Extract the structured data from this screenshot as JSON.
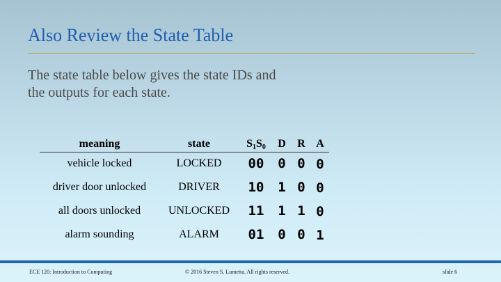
{
  "slide": {
    "title": "Also Review the State Table",
    "intro_line1": "The state table below gives the state IDs and",
    "intro_line2": "the outputs for each state."
  },
  "table": {
    "headers": {
      "meaning": "meaning",
      "state": "state",
      "s1s0_s": "S",
      "s1s0_sub1": "1",
      "s1s0_s2": "S",
      "s1s0_sub0": "0",
      "d": "D",
      "r": "R",
      "a": "A"
    },
    "rows": [
      {
        "meaning": "vehicle locked",
        "state": "LOCKED",
        "s1s0": "00",
        "d": "0",
        "r": "0",
        "a": "0"
      },
      {
        "meaning": "driver door unlocked",
        "state": "DRIVER",
        "s1s0": "10",
        "d": "1",
        "r": "0",
        "a": "0"
      },
      {
        "meaning": "all doors unlocked",
        "state": "UNLOCKED",
        "s1s0": "11",
        "d": "1",
        "r": "1",
        "a": "0"
      },
      {
        "meaning": "alarm sounding",
        "state": "ALARM",
        "s1s0": "01",
        "d": "0",
        "r": "0",
        "a": "1"
      }
    ]
  },
  "footer": {
    "course": "ECE 120: Introduction to Computing",
    "copyright": "© 2016 Steven S. Lumetta.  All rights reserved.",
    "slide_number": "slide 6"
  },
  "colors": {
    "title": "#1f5fae",
    "rule": "#b9a84a",
    "footer_bar": "#1f66b0"
  }
}
